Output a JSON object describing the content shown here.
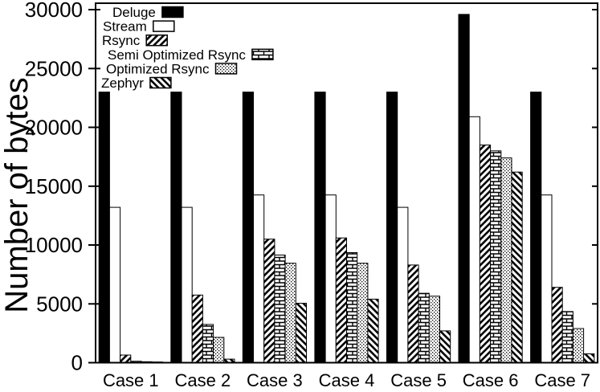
{
  "chart_data": {
    "type": "bar",
    "title": "",
    "xlabel": "",
    "ylabel": "Number of bytes",
    "ylim": [
      0,
      30000
    ],
    "yticks": [
      0,
      5000,
      10000,
      15000,
      20000,
      25000,
      30000
    ],
    "grid": false,
    "legend_position": "top-left-inside",
    "background_color": "#ffffff",
    "ink_color": "#000000",
    "categories": [
      "Case 1",
      "Case 2",
      "Case 3",
      "Case 4",
      "Case 5",
      "Case 6",
      "Case 7"
    ],
    "series": [
      {
        "name": "Deluge",
        "fill": "solid-black",
        "values": [
          23000,
          23000,
          23000,
          23000,
          23000,
          29600,
          23000
        ]
      },
      {
        "name": "Stream",
        "fill": "white",
        "values": [
          13200,
          13200,
          14250,
          14250,
          13200,
          20900,
          14250
        ]
      },
      {
        "name": "Rsync",
        "fill": "diagonal-up-hatch",
        "values": [
          650,
          5750,
          10500,
          10600,
          8300,
          18500,
          6400
        ]
      },
      {
        "name": "Semi Optimized Rsync",
        "fill": "brick",
        "values": [
          120,
          3250,
          9150,
          9350,
          5900,
          18000,
          4350
        ]
      },
      {
        "name": "Optimized Rsync",
        "fill": "dots",
        "values": [
          80,
          2150,
          8450,
          8450,
          5650,
          17400,
          2900
        ]
      },
      {
        "name": "Zephyr",
        "fill": "diagonal-down-hatch",
        "values": [
          60,
          300,
          5050,
          5400,
          2700,
          16200,
          750
        ]
      }
    ]
  }
}
